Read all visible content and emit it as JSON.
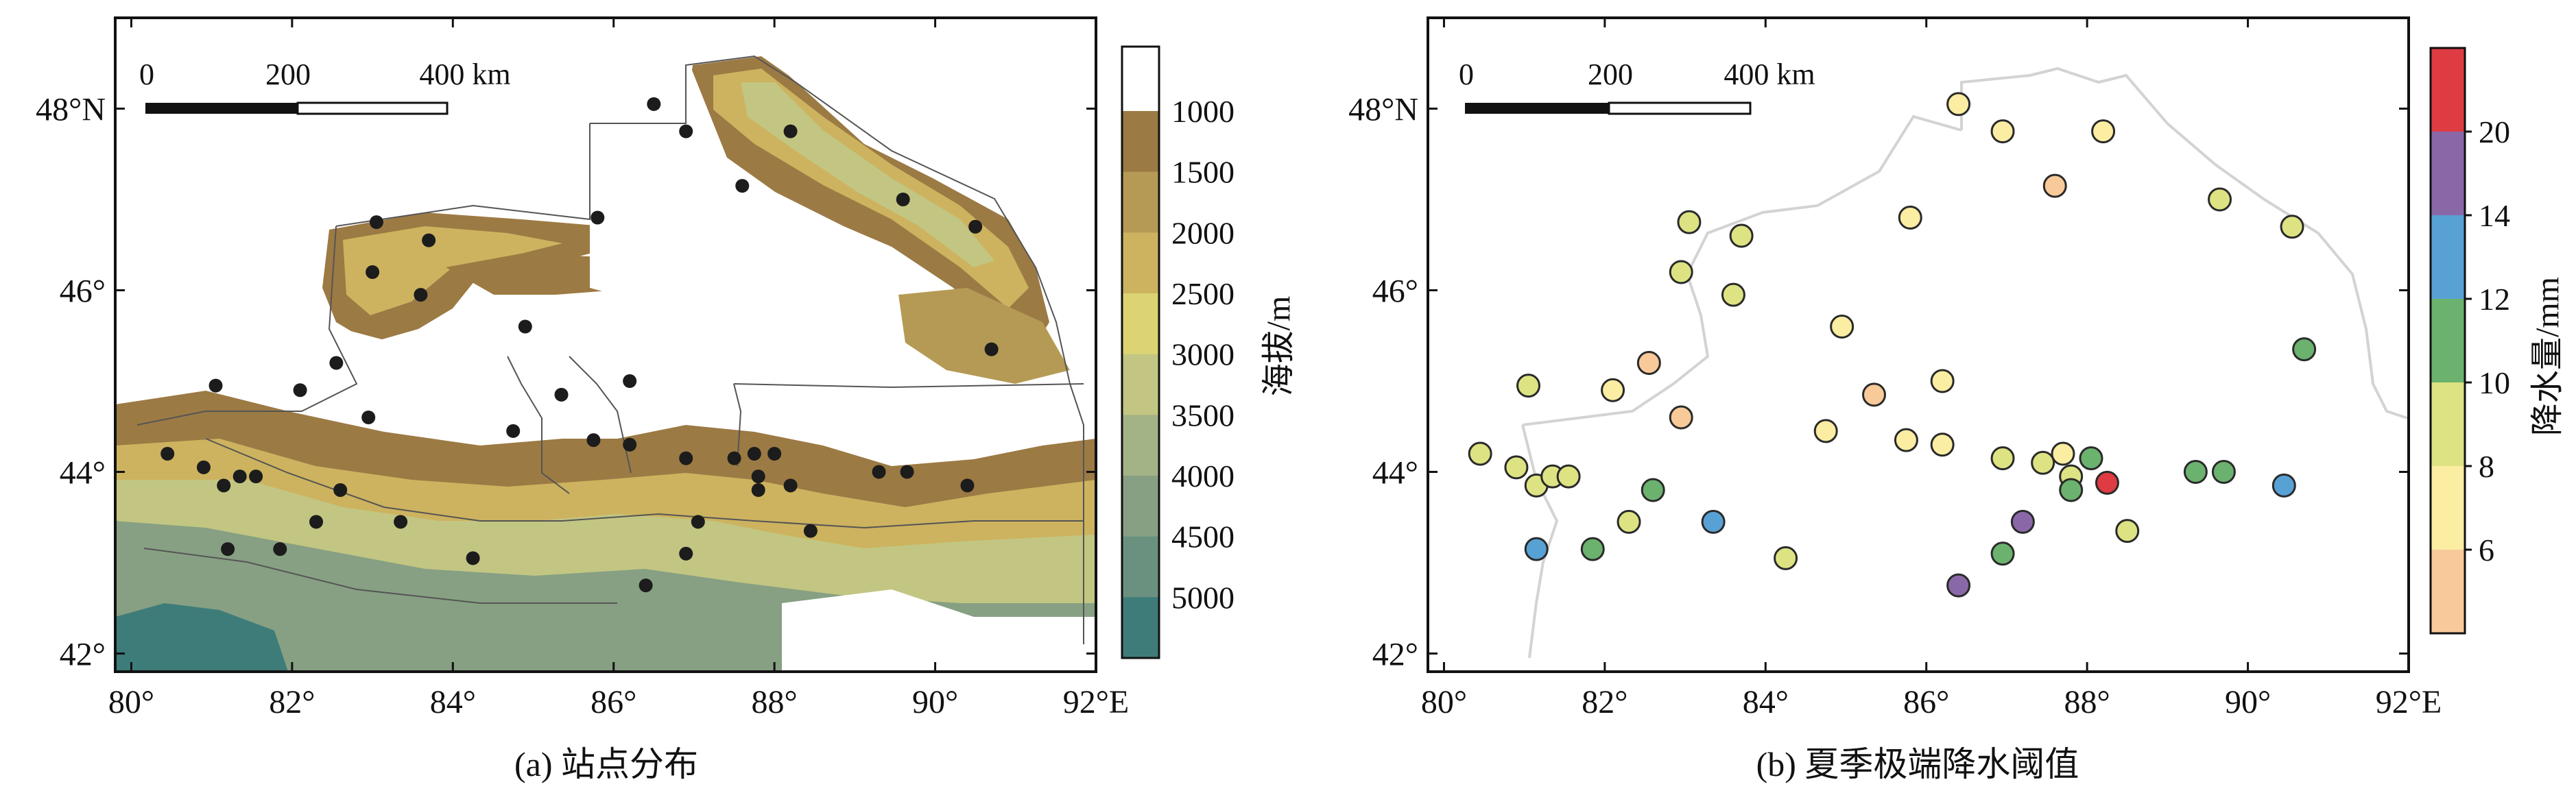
{
  "colors": {
    "white_zone": "#ffffff",
    "terrain": [
      "#9c7a44",
      "#b59a55",
      "#cdb35f",
      "#dcd472",
      "#c2c682",
      "#a4b386",
      "#87a083",
      "#6a917f",
      "#3e7c7a"
    ],
    "precip": {
      "c4": "#f8c999",
      "c6": "#fbeda2",
      "c8": "#dde382",
      "c10": "#6bb26f",
      "c12": "#58a1d5",
      "c14": "#8a68a8",
      "c20": "#de3b43"
    },
    "boundary_a": "#555555",
    "boundary_b": "#d3d3d3",
    "station_a": "#1c1c1c",
    "marker_edge": "#2a2a2a"
  },
  "panel_a": {
    "caption": "(a) 站点分布",
    "x_ticks": [
      "80°",
      "82°",
      "84°",
      "86°",
      "88°",
      "90°",
      "92°E"
    ],
    "y_ticks": [
      "42°",
      "44°",
      "46°",
      "48°N"
    ],
    "scale_bar": {
      "l0": "0",
      "l1": "200",
      "l2": "400 km"
    },
    "colorbar": {
      "label": "海拔/m",
      "ticks": [
        "1000",
        "1500",
        "2000",
        "2500",
        "3000",
        "3500",
        "4000",
        "4500",
        "5000"
      ]
    }
  },
  "panel_b": {
    "caption": "(b) 夏季极端降水阈值",
    "x_ticks": [
      "80°",
      "82°",
      "84°",
      "86°",
      "88°",
      "90°",
      "92°E"
    ],
    "y_ticks": [
      "42°",
      "44°",
      "46°",
      "48°N"
    ],
    "scale_bar": {
      "l0": "0",
      "l1": "200",
      "l2": "400 km"
    },
    "colorbar": {
      "label": "降水量/mm",
      "ticks": [
        "6",
        "8",
        "10",
        "12",
        "14",
        "20"
      ]
    }
  },
  "chart_data": [
    {
      "type": "scatter",
      "title": "(a) 站点分布",
      "xlim": [
        79.8,
        92.0
      ],
      "ylim": [
        41.8,
        49.0
      ],
      "x_ticks": [
        80,
        82,
        84,
        86,
        88,
        90,
        92
      ],
      "y_ticks": [
        42,
        44,
        46,
        48
      ],
      "colorbar_label": "海拔/m",
      "colorbar_ticks": [
        1000,
        1500,
        2000,
        2500,
        3000,
        3500,
        4000,
        4500,
        5000
      ],
      "points": [
        [
          86.5,
          48.05
        ],
        [
          86.9,
          47.75
        ],
        [
          88.2,
          47.75
        ],
        [
          87.6,
          47.15
        ],
        [
          89.6,
          47.0
        ],
        [
          90.5,
          46.7
        ],
        [
          85.8,
          46.8
        ],
        [
          83.05,
          46.75
        ],
        [
          83.7,
          46.55
        ],
        [
          83.0,
          46.2
        ],
        [
          83.6,
          45.95
        ],
        [
          84.9,
          45.6
        ],
        [
          90.7,
          45.35
        ],
        [
          81.05,
          44.95
        ],
        [
          82.55,
          45.2
        ],
        [
          82.1,
          44.9
        ],
        [
          86.2,
          45.0
        ],
        [
          85.35,
          44.85
        ],
        [
          84.75,
          44.45
        ],
        [
          82.95,
          44.6
        ],
        [
          86.2,
          44.3
        ],
        [
          85.75,
          44.35
        ],
        [
          86.9,
          44.15
        ],
        [
          87.5,
          44.15
        ],
        [
          87.75,
          44.2
        ],
        [
          88.0,
          44.2
        ],
        [
          87.8,
          43.95
        ],
        [
          87.8,
          43.8
        ],
        [
          88.2,
          43.85
        ],
        [
          89.3,
          44.0
        ],
        [
          89.65,
          44.0
        ],
        [
          90.4,
          43.85
        ],
        [
          80.45,
          44.2
        ],
        [
          80.9,
          44.05
        ],
        [
          81.15,
          43.85
        ],
        [
          81.35,
          43.95
        ],
        [
          81.55,
          43.95
        ],
        [
          82.6,
          43.8
        ],
        [
          81.2,
          43.15
        ],
        [
          81.85,
          43.15
        ],
        [
          82.3,
          43.45
        ],
        [
          83.35,
          43.45
        ],
        [
          87.05,
          43.45
        ],
        [
          88.45,
          43.35
        ],
        [
          86.9,
          43.1
        ],
        [
          84.25,
          43.05
        ],
        [
          86.4,
          42.75
        ]
      ]
    },
    {
      "type": "scatter",
      "title": "(b) 夏季极端降水阈值",
      "xlim": [
        79.8,
        92.0
      ],
      "ylim": [
        41.8,
        49.0
      ],
      "x_ticks": [
        80,
        82,
        84,
        86,
        88,
        90,
        92
      ],
      "y_ticks": [
        42,
        44,
        46,
        48
      ],
      "colorbar_label": "降水量/mm",
      "colorbar_ticks": [
        6,
        8,
        10,
        12,
        14,
        20
      ],
      "points": [
        {
          "x": 86.4,
          "y": 48.05,
          "v": 7
        },
        {
          "x": 86.95,
          "y": 47.75,
          "v": 7
        },
        {
          "x": 88.2,
          "y": 47.75,
          "v": 7
        },
        {
          "x": 87.6,
          "y": 47.15,
          "v": 5
        },
        {
          "x": 89.65,
          "y": 47.0,
          "v": 9
        },
        {
          "x": 90.55,
          "y": 46.7,
          "v": 9
        },
        {
          "x": 85.8,
          "y": 46.8,
          "v": 7
        },
        {
          "x": 83.05,
          "y": 46.75,
          "v": 9
        },
        {
          "x": 83.7,
          "y": 46.6,
          "v": 9
        },
        {
          "x": 82.95,
          "y": 46.2,
          "v": 9
        },
        {
          "x": 83.6,
          "y": 45.95,
          "v": 9
        },
        {
          "x": 84.95,
          "y": 45.6,
          "v": 7
        },
        {
          "x": 90.7,
          "y": 45.35,
          "v": 11
        },
        {
          "x": 81.05,
          "y": 44.95,
          "v": 9
        },
        {
          "x": 82.55,
          "y": 45.2,
          "v": 5
        },
        {
          "x": 82.1,
          "y": 44.9,
          "v": 7
        },
        {
          "x": 86.2,
          "y": 45.0,
          "v": 7
        },
        {
          "x": 85.35,
          "y": 44.85,
          "v": 5
        },
        {
          "x": 84.75,
          "y": 44.45,
          "v": 7
        },
        {
          "x": 82.95,
          "y": 44.6,
          "v": 5
        },
        {
          "x": 86.2,
          "y": 44.3,
          "v": 7
        },
        {
          "x": 85.75,
          "y": 44.35,
          "v": 7
        },
        {
          "x": 86.95,
          "y": 44.15,
          "v": 9
        },
        {
          "x": 87.45,
          "y": 44.1,
          "v": 9
        },
        {
          "x": 87.7,
          "y": 44.2,
          "v": 7
        },
        {
          "x": 88.05,
          "y": 44.15,
          "v": 11
        },
        {
          "x": 87.8,
          "y": 43.95,
          "v": 9
        },
        {
          "x": 87.8,
          "y": 43.8,
          "v": 11
        },
        {
          "x": 88.25,
          "y": 43.88,
          "v": 21
        },
        {
          "x": 89.35,
          "y": 44.0,
          "v": 11
        },
        {
          "x": 89.7,
          "y": 44.0,
          "v": 11
        },
        {
          "x": 90.45,
          "y": 43.85,
          "v": 13
        },
        {
          "x": 80.45,
          "y": 44.2,
          "v": 9
        },
        {
          "x": 80.9,
          "y": 44.05,
          "v": 9
        },
        {
          "x": 81.15,
          "y": 43.85,
          "v": 9
        },
        {
          "x": 81.35,
          "y": 43.95,
          "v": 9
        },
        {
          "x": 81.55,
          "y": 43.95,
          "v": 9
        },
        {
          "x": 82.6,
          "y": 43.8,
          "v": 11
        },
        {
          "x": 81.15,
          "y": 43.15,
          "v": 13
        },
        {
          "x": 81.85,
          "y": 43.15,
          "v": 11
        },
        {
          "x": 82.3,
          "y": 43.45,
          "v": 9
        },
        {
          "x": 83.35,
          "y": 43.45,
          "v": 13
        },
        {
          "x": 87.2,
          "y": 43.45,
          "v": 15
        },
        {
          "x": 88.5,
          "y": 43.35,
          "v": 9
        },
        {
          "x": 86.95,
          "y": 43.1,
          "v": 11
        },
        {
          "x": 84.25,
          "y": 43.05,
          "v": 9
        },
        {
          "x": 86.4,
          "y": 42.75,
          "v": 15
        }
      ]
    }
  ]
}
